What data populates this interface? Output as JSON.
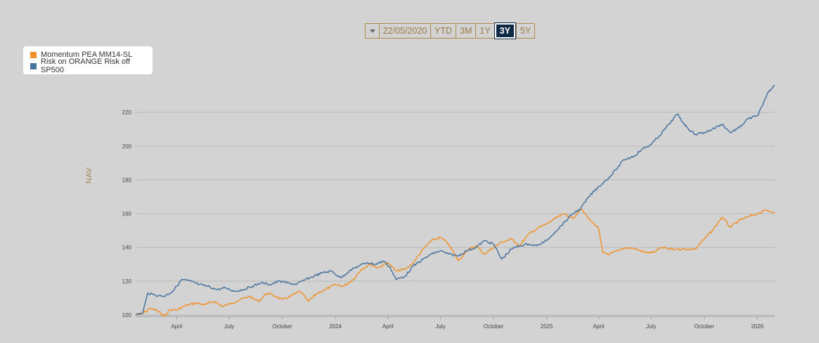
{
  "range_selector": {
    "date": "22/05/2020",
    "buttons": [
      "YTD",
      "3M",
      "1Y",
      "3Y",
      "5Y"
    ],
    "active": "3Y"
  },
  "legend_items": [
    {
      "label": "Momentum PEA MM14-SL",
      "color": "#f0922c"
    },
    {
      "label": "Risk on ORANGE Risk off SP500",
      "color": "#4a74a0"
    }
  ],
  "chart_data": {
    "type": "line",
    "title": "",
    "ylabel": "NAV",
    "xlabel": "",
    "ylim": [
      100,
      240
    ],
    "yticks": [
      100,
      120,
      140,
      160,
      180,
      200,
      220
    ],
    "xlim": [
      "2023-01-20",
      "2026-01-31"
    ],
    "xticks": [
      {
        "date": "2023-04-01",
        "label": "April"
      },
      {
        "date": "2023-07-01",
        "label": "July"
      },
      {
        "date": "2023-10-01",
        "label": "October"
      },
      {
        "date": "2024-01-01",
        "label": "2024"
      },
      {
        "date": "2024-04-01",
        "label": "April"
      },
      {
        "date": "2024-07-01",
        "label": "July"
      },
      {
        "date": "2024-10-01",
        "label": "October"
      },
      {
        "date": "2025-01-01",
        "label": "2025"
      },
      {
        "date": "2025-04-01",
        "label": "April"
      },
      {
        "date": "2025-07-01",
        "label": "July"
      },
      {
        "date": "2025-10-01",
        "label": "October"
      },
      {
        "date": "2026-01-01",
        "label": "2026"
      }
    ],
    "grid": true,
    "legend_position": "top-left",
    "series": [
      {
        "name": "Momentum PEA MM14-SL",
        "color": "#f0922c",
        "points": [
          [
            "2023-01-20",
            100
          ],
          [
            "2023-02-01",
            101
          ],
          [
            "2023-02-15",
            104
          ],
          [
            "2023-03-01",
            102
          ],
          [
            "2023-03-10",
            99
          ],
          [
            "2023-03-20",
            103
          ],
          [
            "2023-04-01",
            103
          ],
          [
            "2023-04-20",
            106
          ],
          [
            "2023-05-05",
            107
          ],
          [
            "2023-05-20",
            106
          ],
          [
            "2023-06-05",
            108
          ],
          [
            "2023-06-20",
            105
          ],
          [
            "2023-07-05",
            107
          ],
          [
            "2023-07-20",
            109
          ],
          [
            "2023-08-05",
            111
          ],
          [
            "2023-08-20",
            108
          ],
          [
            "2023-09-05",
            113
          ],
          [
            "2023-09-20",
            111
          ],
          [
            "2023-10-01",
            109
          ],
          [
            "2023-10-15",
            111
          ],
          [
            "2023-11-01",
            114
          ],
          [
            "2023-11-15",
            108
          ],
          [
            "2023-12-01",
            113
          ],
          [
            "2023-12-15",
            115
          ],
          [
            "2024-01-01",
            118
          ],
          [
            "2024-01-15",
            117
          ],
          [
            "2024-02-01",
            121
          ],
          [
            "2024-02-15",
            127
          ],
          [
            "2024-03-01",
            130
          ],
          [
            "2024-03-15",
            128
          ],
          [
            "2024-04-01",
            131
          ],
          [
            "2024-04-15",
            126
          ],
          [
            "2024-05-01",
            127
          ],
          [
            "2024-05-15",
            131
          ],
          [
            "2024-06-01",
            139
          ],
          [
            "2024-06-15",
            144
          ],
          [
            "2024-07-01",
            146
          ],
          [
            "2024-07-15",
            142
          ],
          [
            "2024-08-01",
            132
          ],
          [
            "2024-08-15",
            138
          ],
          [
            "2024-09-01",
            141
          ],
          [
            "2024-09-15",
            136
          ],
          [
            "2024-10-01",
            140
          ],
          [
            "2024-10-15",
            143
          ],
          [
            "2024-11-01",
            145
          ],
          [
            "2024-11-15",
            141
          ],
          [
            "2024-12-01",
            148
          ],
          [
            "2024-12-15",
            151
          ],
          [
            "2025-01-01",
            154
          ],
          [
            "2025-01-15",
            157
          ],
          [
            "2025-02-01",
            160
          ],
          [
            "2025-02-15",
            157
          ],
          [
            "2025-03-01",
            163
          ],
          [
            "2025-03-15",
            157
          ],
          [
            "2025-04-01",
            151
          ],
          [
            "2025-04-08",
            137
          ],
          [
            "2025-04-20",
            136
          ],
          [
            "2025-05-05",
            138
          ],
          [
            "2025-05-20",
            140
          ],
          [
            "2025-06-05",
            139
          ],
          [
            "2025-06-20",
            137
          ],
          [
            "2025-07-05",
            137
          ],
          [
            "2025-07-20",
            140
          ],
          [
            "2025-08-01",
            139
          ],
          [
            "2025-08-15",
            139
          ],
          [
            "2025-09-01",
            139
          ],
          [
            "2025-09-15",
            139
          ],
          [
            "2025-10-01",
            145
          ],
          [
            "2025-10-15",
            150
          ],
          [
            "2025-11-01",
            158
          ],
          [
            "2025-11-15",
            152
          ],
          [
            "2025-12-01",
            156
          ],
          [
            "2025-12-15",
            158
          ],
          [
            "2026-01-01",
            160
          ],
          [
            "2026-01-15",
            162
          ],
          [
            "2026-01-31",
            161
          ]
        ]
      },
      {
        "name": "Risk on ORANGE Risk off SP500",
        "color": "#4a74a0",
        "points": [
          [
            "2023-01-20",
            100
          ],
          [
            "2023-02-01",
            101
          ],
          [
            "2023-02-10",
            113
          ],
          [
            "2023-02-20",
            112
          ],
          [
            "2023-03-10",
            111
          ],
          [
            "2023-03-25",
            114
          ],
          [
            "2023-04-01",
            117
          ],
          [
            "2023-04-10",
            121
          ],
          [
            "2023-04-25",
            120
          ],
          [
            "2023-05-10",
            118
          ],
          [
            "2023-05-25",
            117
          ],
          [
            "2023-06-10",
            115
          ],
          [
            "2023-06-25",
            116
          ],
          [
            "2023-07-10",
            114
          ],
          [
            "2023-07-25",
            115
          ],
          [
            "2023-08-10",
            117
          ],
          [
            "2023-08-25",
            119
          ],
          [
            "2023-09-10",
            118
          ],
          [
            "2023-09-25",
            120
          ],
          [
            "2023-10-10",
            119
          ],
          [
            "2023-10-25",
            118
          ],
          [
            "2023-11-10",
            121
          ],
          [
            "2023-11-25",
            123
          ],
          [
            "2023-12-10",
            125
          ],
          [
            "2023-12-25",
            126
          ],
          [
            "2024-01-10",
            122
          ],
          [
            "2024-01-25",
            126
          ],
          [
            "2024-02-10",
            129
          ],
          [
            "2024-02-25",
            131
          ],
          [
            "2024-03-10",
            130
          ],
          [
            "2024-03-25",
            132
          ],
          [
            "2024-04-05",
            128
          ],
          [
            "2024-04-15",
            121
          ],
          [
            "2024-05-01",
            123
          ],
          [
            "2024-05-15",
            129
          ],
          [
            "2024-06-01",
            133
          ],
          [
            "2024-06-15",
            136
          ],
          [
            "2024-07-01",
            138
          ],
          [
            "2024-07-15",
            136
          ],
          [
            "2024-08-01",
            135
          ],
          [
            "2024-08-15",
            138
          ],
          [
            "2024-09-01",
            140
          ],
          [
            "2024-09-15",
            144
          ],
          [
            "2024-10-01",
            142
          ],
          [
            "2024-10-15",
            133
          ],
          [
            "2024-11-01",
            139
          ],
          [
            "2024-11-15",
            141
          ],
          [
            "2024-12-01",
            142
          ],
          [
            "2024-12-15",
            141
          ],
          [
            "2025-01-01",
            144
          ],
          [
            "2025-01-15",
            149
          ],
          [
            "2025-02-01",
            155
          ],
          [
            "2025-02-15",
            160
          ],
          [
            "2025-03-01",
            163
          ],
          [
            "2025-03-15",
            170
          ],
          [
            "2025-04-01",
            176
          ],
          [
            "2025-04-15",
            180
          ],
          [
            "2025-05-01",
            186
          ],
          [
            "2025-05-15",
            192
          ],
          [
            "2025-06-01",
            194
          ],
          [
            "2025-06-15",
            198
          ],
          [
            "2025-07-01",
            201
          ],
          [
            "2025-07-15",
            206
          ],
          [
            "2025-08-01",
            213
          ],
          [
            "2025-08-15",
            219
          ],
          [
            "2025-09-01",
            211
          ],
          [
            "2025-09-15",
            207
          ],
          [
            "2025-10-01",
            208
          ],
          [
            "2025-10-15",
            210
          ],
          [
            "2025-11-01",
            213
          ],
          [
            "2025-11-15",
            208
          ],
          [
            "2025-12-01",
            211
          ],
          [
            "2025-12-15",
            216
          ],
          [
            "2026-01-01",
            218
          ],
          [
            "2026-01-10",
            224
          ],
          [
            "2026-01-20",
            232
          ],
          [
            "2026-01-31",
            236
          ]
        ]
      }
    ]
  }
}
